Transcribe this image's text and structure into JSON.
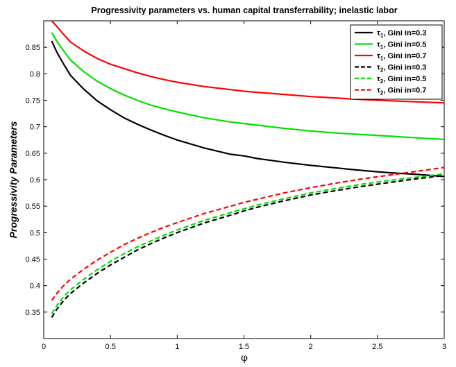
{
  "chart_data": {
    "type": "line",
    "title": "Progressivity parameters vs. human capital transferrability; inelastic labor",
    "xlabel": "φ",
    "ylabel": "Progressivity Parameters",
    "xlim": [
      0,
      3
    ],
    "ylim": [
      0.3,
      0.9
    ],
    "xticks": [
      "0",
      "0.5",
      "1",
      "1.5",
      "2",
      "2.5",
      "3"
    ],
    "yticks": [
      "0.35",
      "0.4",
      "0.45",
      "0.5",
      "0.55",
      "0.6",
      "0.65",
      "0.7",
      "0.75",
      "0.8",
      "0.85"
    ],
    "grid": false,
    "legend_position": "top-right",
    "x": [
      0.06,
      0.1,
      0.15,
      0.2,
      0.3,
      0.4,
      0.5,
      0.6,
      0.7,
      0.8,
      0.9,
      1.0,
      1.2,
      1.4,
      1.5,
      1.6,
      1.8,
      2.0,
      2.2,
      2.4,
      2.6,
      2.8,
      3.0
    ],
    "series": [
      {
        "name": "τ₁, Gini in=0.3",
        "symbol": "τ",
        "sub": "1",
        "suffix": ", Gini in=0.3",
        "color": "#000000",
        "dash": "solid",
        "values": [
          0.862,
          0.84,
          0.818,
          0.797,
          0.771,
          0.749,
          0.732,
          0.717,
          0.705,
          0.694,
          0.684,
          0.675,
          0.66,
          0.648,
          0.645,
          0.64,
          0.633,
          0.627,
          0.622,
          0.617,
          0.613,
          0.61,
          0.606
        ]
      },
      {
        "name": "τ₁, Gini in=0.5",
        "symbol": "τ",
        "sub": "1",
        "suffix": ", Gini in=0.5",
        "color": "#00e000",
        "dash": "solid",
        "values": [
          0.878,
          0.861,
          0.843,
          0.826,
          0.804,
          0.786,
          0.772,
          0.76,
          0.75,
          0.741,
          0.734,
          0.728,
          0.717,
          0.709,
          0.706,
          0.703,
          0.697,
          0.692,
          0.688,
          0.685,
          0.682,
          0.679,
          0.676
        ]
      },
      {
        "name": "τ₁, Gini in=0.7",
        "symbol": "τ",
        "sub": "1",
        "suffix": ", Gini in=0.7",
        "color": "#ff0000",
        "dash": "solid",
        "values": [
          0.9,
          0.889,
          0.874,
          0.86,
          0.843,
          0.829,
          0.818,
          0.81,
          0.802,
          0.795,
          0.789,
          0.784,
          0.776,
          0.77,
          0.767,
          0.765,
          0.761,
          0.757,
          0.754,
          0.751,
          0.749,
          0.747,
          0.745
        ]
      },
      {
        "name": "τ₂, Gini in=0.3",
        "symbol": "τ",
        "sub": "2",
        "suffix": ", Gini in=0.3",
        "color": "#000000",
        "dash": "dashed",
        "values": [
          0.34,
          0.356,
          0.372,
          0.385,
          0.405,
          0.423,
          0.439,
          0.453,
          0.467,
          0.479,
          0.49,
          0.5,
          0.518,
          0.533,
          0.541,
          0.548,
          0.56,
          0.571,
          0.58,
          0.588,
          0.595,
          0.602,
          0.608
        ]
      },
      {
        "name": "τ₂, Gini in=0.5",
        "symbol": "τ",
        "sub": "2",
        "suffix": ", Gini in=0.5",
        "color": "#00e000",
        "dash": "dashed",
        "values": [
          0.347,
          0.363,
          0.379,
          0.392,
          0.412,
          0.43,
          0.446,
          0.46,
          0.473,
          0.484,
          0.495,
          0.505,
          0.523,
          0.538,
          0.545,
          0.552,
          0.564,
          0.575,
          0.584,
          0.592,
          0.599,
          0.605,
          0.611
        ]
      },
      {
        "name": "τ₂, Gini in=0.7",
        "symbol": "τ",
        "sub": "2",
        "suffix": ", Gini in=0.7",
        "color": "#ff0000",
        "dash": "dashed",
        "values": [
          0.372,
          0.386,
          0.4,
          0.412,
          0.431,
          0.448,
          0.463,
          0.477,
          0.489,
          0.5,
          0.51,
          0.519,
          0.536,
          0.55,
          0.557,
          0.563,
          0.575,
          0.585,
          0.594,
          0.602,
          0.609,
          0.616,
          0.623
        ]
      }
    ]
  }
}
